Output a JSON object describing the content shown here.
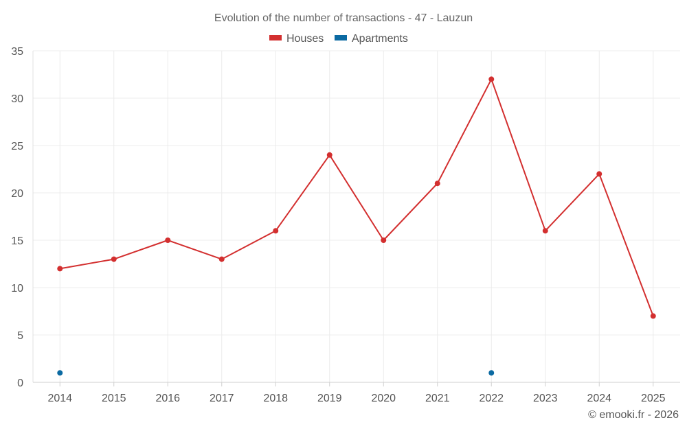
{
  "chart_data": {
    "type": "line",
    "title": "Evolution of the number of transactions - 47 - Lauzun",
    "categories": [
      "2014",
      "2015",
      "2016",
      "2017",
      "2018",
      "2019",
      "2020",
      "2021",
      "2022",
      "2023",
      "2024",
      "2025"
    ],
    "ylim": [
      0,
      35
    ],
    "yticks": [
      0,
      5,
      10,
      15,
      20,
      25,
      30,
      35
    ],
    "ytick_labels": [
      "0",
      "5",
      "10",
      "15",
      "20",
      "25",
      "30",
      "35"
    ],
    "grid": true,
    "legend_position": "top-center",
    "xlabel": "",
    "ylabel": "",
    "series": [
      {
        "name": "Houses",
        "color": "#d32f2f",
        "line": true,
        "values": [
          12,
          13,
          15,
          13,
          16,
          24,
          15,
          21,
          32,
          16,
          22,
          7
        ]
      },
      {
        "name": "Apartments",
        "color": "#0b6aa2",
        "line": false,
        "values": [
          1,
          null,
          null,
          null,
          null,
          null,
          null,
          null,
          1,
          null,
          null,
          null
        ]
      }
    ]
  },
  "credit": "© emooki.fr - 2026"
}
